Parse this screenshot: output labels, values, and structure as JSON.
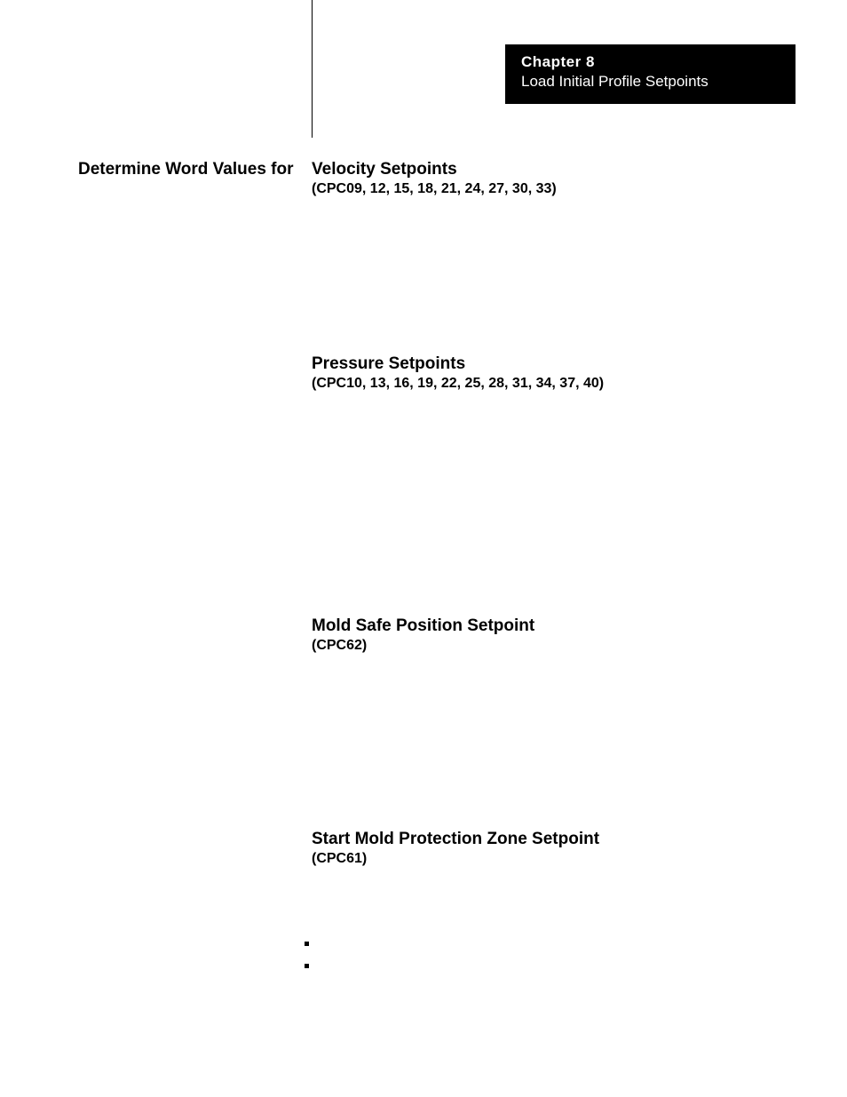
{
  "chapter": {
    "title": "Chapter  8",
    "subtitle": "Load Initial Profile Setpoints"
  },
  "left_heading": "Determine Word Values for",
  "sections": [
    {
      "heading": "Velocity Setpoints",
      "subheading": "(CPC09, 12, 15, 18, 21, 24, 27, 30, 33)"
    },
    {
      "heading": "Pressure Setpoints",
      "subheading": "(CPC10, 13, 16, 19, 22, 25, 28, 31, 34, 37, 40)"
    },
    {
      "heading": "Mold Safe Position Setpoint",
      "subheading": "(CPC62)"
    },
    {
      "heading": "Start Mold Protection Zone Setpoint",
      "subheading": "(CPC61)"
    }
  ],
  "colors": {
    "background": "#ffffff",
    "text": "#000000",
    "header_bg": "#000000",
    "header_text": "#ffffff"
  },
  "typography": {
    "heading_fontsize": 19,
    "subheading_fontsize": 16,
    "chapter_fontsize": 17,
    "font_family": "Arial"
  }
}
